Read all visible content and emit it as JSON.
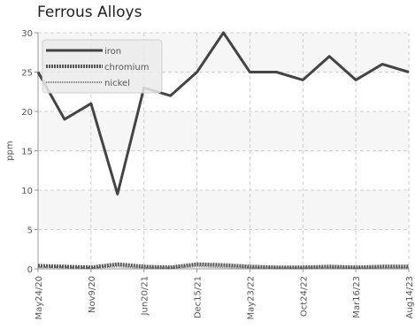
{
  "chart_data": {
    "type": "line",
    "title": "Ferrous Alloys",
    "ylabel": "ppm",
    "xlabel": "",
    "ylim": [
      0,
      30
    ],
    "yticks": [
      0,
      5,
      10,
      15,
      20,
      25,
      30
    ],
    "grid": true,
    "legend_position": "top-left",
    "x_tick_labels": [
      "May24/20",
      "Nov9/20",
      "Jun20/21",
      "Dec15/21",
      "May23/22",
      "Oct24/22",
      "Mar16/23",
      "Aug14/23"
    ],
    "series": [
      {
        "name": "iron",
        "color": "#444444",
        "style": "solid",
        "values": [
          25,
          19,
          21,
          9.5,
          23,
          22,
          25,
          30,
          25,
          25,
          24,
          27,
          24,
          26,
          25
        ]
      },
      {
        "name": "chromium",
        "color": "#555555",
        "style": "dotted",
        "values": [
          0.4,
          0.3,
          0.2,
          0.6,
          0.3,
          0.2,
          0.6,
          0.5,
          0.3,
          0.2,
          0.2,
          0.3,
          0.2,
          0.3,
          0.3
        ]
      },
      {
        "name": "nickel",
        "color": "#777777",
        "style": "dotted-thin",
        "values": [
          0.2,
          0.2,
          0.1,
          0.3,
          0.1,
          0.1,
          0.3,
          0.2,
          0.1,
          0.1,
          0.1,
          0.1,
          0.1,
          0.1,
          0.1
        ]
      }
    ]
  }
}
